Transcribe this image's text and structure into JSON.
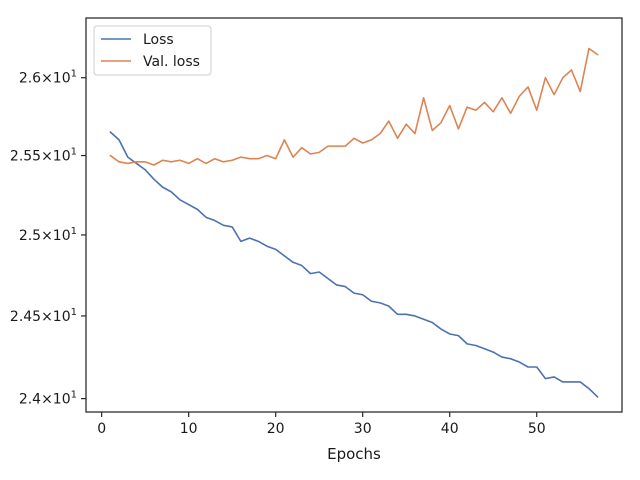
{
  "chart_data": {
    "type": "line",
    "xlabel": "Epochs",
    "ylabel": "",
    "title": "",
    "xlim": [
      -1.8,
      59.8
    ],
    "ylim": [
      23.92,
      26.39
    ],
    "yscale": "log",
    "grid": false,
    "legend_position": "top-left",
    "x_ticks": [
      {
        "value": 0,
        "label": "0"
      },
      {
        "value": 10,
        "label": "10"
      },
      {
        "value": 20,
        "label": "20"
      },
      {
        "value": 30,
        "label": "30"
      },
      {
        "value": 40,
        "label": "40"
      },
      {
        "value": 50,
        "label": "50"
      }
    ],
    "y_ticks": [
      {
        "value": 24.0,
        "mantissa": "2.4",
        "base": "10",
        "exp": "1"
      },
      {
        "value": 24.5,
        "mantissa": "2.45",
        "base": "10",
        "exp": "1"
      },
      {
        "value": 25.0,
        "mantissa": "2.5",
        "base": "10",
        "exp": "1"
      },
      {
        "value": 25.5,
        "mantissa": "2.55",
        "base": "10",
        "exp": "1"
      },
      {
        "value": 26.0,
        "mantissa": "2.6",
        "base": "10",
        "exp": "1"
      }
    ],
    "x": [
      1,
      2,
      3,
      4,
      5,
      6,
      7,
      8,
      9,
      10,
      11,
      12,
      13,
      14,
      15,
      16,
      17,
      18,
      19,
      20,
      21,
      22,
      23,
      24,
      25,
      26,
      27,
      28,
      29,
      30,
      31,
      32,
      33,
      34,
      35,
      36,
      37,
      38,
      39,
      40,
      41,
      42,
      43,
      44,
      45,
      46,
      47,
      48,
      49,
      50,
      51,
      52,
      53,
      54,
      55,
      56,
      57
    ],
    "series": [
      {
        "name": "Loss",
        "color": "#4c72b0",
        "values": [
          25.65,
          25.6,
          25.49,
          25.45,
          25.41,
          25.35,
          25.3,
          25.27,
          25.22,
          25.19,
          25.16,
          25.11,
          25.09,
          25.06,
          25.05,
          24.96,
          24.98,
          24.96,
          24.93,
          24.91,
          24.87,
          24.83,
          24.81,
          24.76,
          24.77,
          24.73,
          24.69,
          24.68,
          24.64,
          24.63,
          24.59,
          24.58,
          24.56,
          24.51,
          24.51,
          24.5,
          24.48,
          24.46,
          24.42,
          24.39,
          24.38,
          24.33,
          24.32,
          24.3,
          24.28,
          24.25,
          24.24,
          24.22,
          24.19,
          24.19,
          24.12,
          24.13,
          24.1,
          24.1,
          24.1,
          24.06,
          24.01
        ]
      },
      {
        "name": "Val. loss",
        "color": "#dd8452",
        "values": [
          25.5,
          25.46,
          25.45,
          25.46,
          25.46,
          25.44,
          25.47,
          25.46,
          25.47,
          25.45,
          25.48,
          25.45,
          25.48,
          25.46,
          25.47,
          25.49,
          25.48,
          25.48,
          25.5,
          25.48,
          25.6,
          25.49,
          25.55,
          25.51,
          25.52,
          25.56,
          25.56,
          25.56,
          25.61,
          25.58,
          25.6,
          25.64,
          25.72,
          25.61,
          25.7,
          25.64,
          25.87,
          25.66,
          25.71,
          25.82,
          25.67,
          25.81,
          25.79,
          25.84,
          25.78,
          25.87,
          25.77,
          25.88,
          25.94,
          25.79,
          26.0,
          25.89,
          26.0,
          26.05,
          25.91,
          26.19,
          26.15
        ]
      }
    ]
  }
}
